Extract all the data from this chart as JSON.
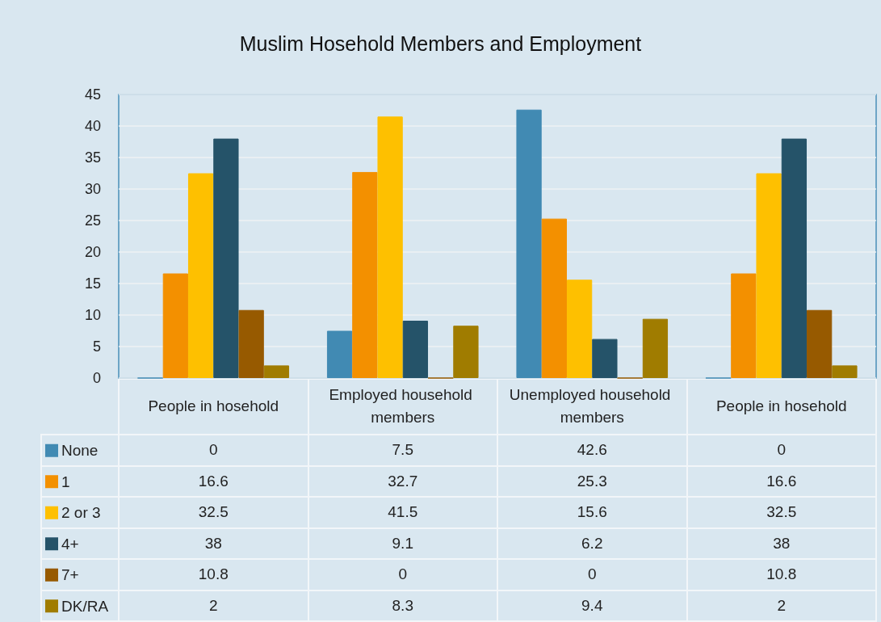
{
  "chart_data": {
    "type": "bar",
    "title": "Muslim Hosehold Members and Employment",
    "categories": [
      "People in hosehold",
      "Employed household members",
      "Unemployed household members",
      "People in hosehold"
    ],
    "series": [
      {
        "name": "None",
        "color": "#418ab3",
        "values": [
          0,
          7.5,
          42.6,
          0
        ]
      },
      {
        "name": "1",
        "color": "#f39000",
        "values": [
          16.6,
          32.7,
          25.3,
          16.6
        ]
      },
      {
        "name": "2 or 3",
        "color": "#fec000",
        "values": [
          32.5,
          41.5,
          15.6,
          32.5
        ]
      },
      {
        "name": "4+",
        "color": "#255369",
        "values": [
          38,
          9.1,
          6.2,
          38
        ]
      },
      {
        "name": "7+",
        "color": "#975a00",
        "values": [
          10.8,
          0,
          0,
          10.8
        ]
      },
      {
        "name": "DK/RA",
        "color": "#a07c00",
        "values": [
          2,
          8.3,
          9.4,
          2
        ]
      }
    ],
    "ylim": [
      0,
      45
    ],
    "yticks": [
      0,
      5,
      10,
      15,
      20,
      25,
      30,
      35,
      40,
      45
    ],
    "grid": "y",
    "legend": "bottom left",
    "data_labels": true
  }
}
